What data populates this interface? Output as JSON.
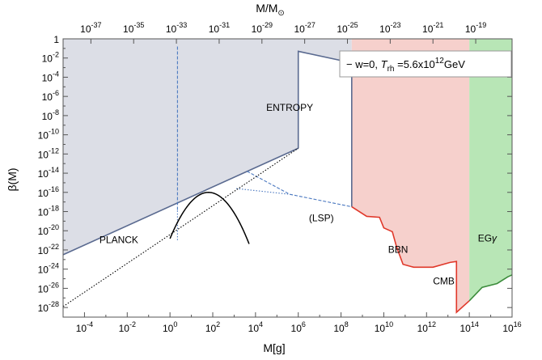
{
  "chart_data": {
    "type": "line",
    "xlabel": "M[g]",
    "xlabel_top": "M/M",
    "xlabel_top_sub": "⊙",
    "ylabel": "β(M)",
    "x_log_range": [
      -5,
      16
    ],
    "y_log_range": [
      -29,
      0
    ],
    "x_ticks": [
      {
        "exp": -4,
        "label": "10",
        "sup": "-4"
      },
      {
        "exp": -2,
        "label": "10",
        "sup": "-2"
      },
      {
        "exp": 0,
        "label": "10",
        "sup": "0"
      },
      {
        "exp": 2,
        "label": "10",
        "sup": "2"
      },
      {
        "exp": 4,
        "label": "10",
        "sup": "4"
      },
      {
        "exp": 6,
        "label": "10",
        "sup": "6"
      },
      {
        "exp": 8,
        "label": "10",
        "sup": "8"
      },
      {
        "exp": 10,
        "label": "10",
        "sup": "10"
      },
      {
        "exp": 12,
        "label": "10",
        "sup": "12"
      },
      {
        "exp": 14,
        "label": "10",
        "sup": "14"
      },
      {
        "exp": 16,
        "label": "10",
        "sup": "16"
      }
    ],
    "x_top_ticks": [
      {
        "exp_g": -3.7,
        "label": "10",
        "sup": "-37"
      },
      {
        "exp_g": -1.7,
        "label": "10",
        "sup": "-35"
      },
      {
        "exp_g": 0.3,
        "label": "10",
        "sup": "-33"
      },
      {
        "exp_g": 2.3,
        "label": "10",
        "sup": "-31"
      },
      {
        "exp_g": 4.3,
        "label": "10",
        "sup": "-29"
      },
      {
        "exp_g": 6.3,
        "label": "10",
        "sup": "-27"
      },
      {
        "exp_g": 8.3,
        "label": "10",
        "sup": "-25"
      },
      {
        "exp_g": 10.3,
        "label": "10",
        "sup": "-23"
      },
      {
        "exp_g": 12.3,
        "label": "10",
        "sup": "-21"
      },
      {
        "exp_g": 14.3,
        "label": "10",
        "sup": "-19"
      }
    ],
    "y_ticks": [
      {
        "exp": 0,
        "label": "1",
        "sup": ""
      },
      {
        "exp": -2,
        "label": "10",
        "sup": "-2"
      },
      {
        "exp": -4,
        "label": "10",
        "sup": "-4"
      },
      {
        "exp": -6,
        "label": "10",
        "sup": "-6"
      },
      {
        "exp": -8,
        "label": "10",
        "sup": "-8"
      },
      {
        "exp": -10,
        "label": "10",
        "sup": "-10"
      },
      {
        "exp": -12,
        "label": "10",
        "sup": "-12"
      },
      {
        "exp": -14,
        "label": "10",
        "sup": "-14"
      },
      {
        "exp": -16,
        "label": "10",
        "sup": "-16"
      },
      {
        "exp": -18,
        "label": "10",
        "sup": "-18"
      },
      {
        "exp": -20,
        "label": "10",
        "sup": "-20"
      },
      {
        "exp": -22,
        "label": "10",
        "sup": "-22"
      },
      {
        "exp": -24,
        "label": "10",
        "sup": "-24"
      },
      {
        "exp": -26,
        "label": "10",
        "sup": "-26"
      },
      {
        "exp": -28,
        "label": "10",
        "sup": "-28"
      }
    ],
    "regions": [
      {
        "name": "gray-region",
        "color": "#dcdee6",
        "points": [
          [
            -5,
            -22.5
          ],
          [
            6,
            -11.4
          ],
          [
            6,
            -1.3
          ],
          [
            8.5,
            -2.5
          ],
          [
            8.5,
            -17.5
          ],
          [
            8.5,
            0
          ],
          [
            -5,
            0
          ]
        ]
      },
      {
        "name": "bbn-cmb-region",
        "color": "#f6d0cc",
        "points": [
          [
            8.5,
            0
          ],
          [
            8.5,
            -17.5
          ],
          [
            9.2,
            -18.5
          ],
          [
            9.8,
            -18.6
          ],
          [
            10.0,
            -19.7
          ],
          [
            10.4,
            -20.1
          ],
          [
            10.6,
            -21.7
          ],
          [
            10.9,
            -23.5
          ],
          [
            11.4,
            -23.8
          ],
          [
            12.3,
            -23.8
          ],
          [
            13.1,
            -23.3
          ],
          [
            13.4,
            -23.2
          ],
          [
            13.4,
            -28.5
          ],
          [
            14.0,
            -27.3
          ],
          [
            14.0,
            0
          ]
        ]
      },
      {
        "name": "eg-gamma-region",
        "color": "#b8e6b6",
        "points": [
          [
            14.0,
            0
          ],
          [
            14.0,
            -27.3
          ],
          [
            14.3,
            -26.6
          ],
          [
            14.6,
            -25.9
          ],
          [
            15.3,
            -25.5
          ],
          [
            15.8,
            -24.8
          ],
          [
            16,
            -24.6
          ],
          [
            16,
            0
          ]
        ]
      }
    ],
    "lines": [
      {
        "name": "planck-boundary",
        "style": "solid",
        "color": "#5a6a90",
        "points": [
          [
            -5,
            -22.5
          ],
          [
            6,
            -11.4
          ]
        ]
      },
      {
        "name": "entropy-boundary",
        "style": "solid",
        "color": "#5a6a90",
        "points": [
          [
            6,
            -11.4
          ],
          [
            6,
            -1.3
          ],
          [
            8.5,
            -2.5
          ],
          [
            8.5,
            -17.5
          ]
        ]
      },
      {
        "name": "lsp-upper",
        "style": "dashed",
        "color": "#4a78c0",
        "points": [
          [
            3.6,
            -13.8
          ],
          [
            5.6,
            -16.2
          ],
          [
            8.5,
            -17.5
          ]
        ]
      },
      {
        "name": "lsp-lower",
        "style": "dotted",
        "color": "#4a78c0",
        "points": [
          [
            3.1,
            -15.6
          ],
          [
            5.6,
            -16.2
          ]
        ]
      },
      {
        "name": "relics-vertical-dashed",
        "style": "dashed",
        "color": "#4a78c0",
        "points": [
          [
            0.35,
            -0.8
          ],
          [
            0.35,
            -17.9
          ]
        ]
      },
      {
        "name": "relics-vertical-dotted",
        "style": "dotted",
        "color": "#4a78c0",
        "points": [
          [
            0.35,
            -17.9
          ],
          [
            0.35,
            -21.0
          ]
        ]
      },
      {
        "name": "bbn-cmb-boundary",
        "style": "solid",
        "color": "#e0382a",
        "points": [
          [
            8.5,
            -17.5
          ],
          [
            9.2,
            -18.5
          ],
          [
            9.8,
            -18.6
          ],
          [
            10.0,
            -19.7
          ],
          [
            10.4,
            -20.1
          ],
          [
            10.6,
            -21.7
          ],
          [
            10.9,
            -23.5
          ],
          [
            11.4,
            -23.8
          ],
          [
            12.3,
            -23.8
          ],
          [
            13.1,
            -23.3
          ],
          [
            13.4,
            -23.2
          ],
          [
            13.4,
            -28.5
          ],
          [
            14.0,
            -27.3
          ]
        ]
      },
      {
        "name": "eg-gamma-boundary",
        "style": "solid",
        "color": "#3c8c3c",
        "points": [
          [
            14.0,
            -27.3
          ],
          [
            14.3,
            -26.6
          ],
          [
            14.6,
            -25.9
          ],
          [
            15.3,
            -25.5
          ],
          [
            15.8,
            -24.8
          ],
          [
            16,
            -24.6
          ]
        ]
      },
      {
        "name": "planck-extension",
        "style": "dotted",
        "color": "#000000",
        "points": [
          [
            -5,
            -27.9
          ],
          [
            6,
            -11.4
          ]
        ]
      }
    ],
    "mass_function": {
      "name": "mass-function",
      "color": "#000000",
      "peak_x": 1.8,
      "peak_y": -16.0,
      "width": 1.64,
      "x_range": [
        0,
        3.7
      ]
    },
    "annotations": [
      {
        "name": "label-entropy",
        "text": "ENTROPY",
        "x": 4.5,
        "y": -7.5
      },
      {
        "name": "label-planck",
        "text": "PLANCK",
        "x": -3.3,
        "y": -21.3
      },
      {
        "name": "label-lsp",
        "text": "(LSP)",
        "x": 6.5,
        "y": -19.0
      },
      {
        "name": "label-bbn",
        "text": "BBN",
        "x": 10.2,
        "y": -22.3
      },
      {
        "name": "label-cmb",
        "text": "CMB",
        "x": 12.3,
        "y": -25.6
      },
      {
        "name": "label-eg",
        "text": "EG",
        "x": 14.4,
        "y": -21.1
      }
    ],
    "legend": {
      "placement": "top-right",
      "prefix": "− w=0, ",
      "t_symbol": "T",
      "t_sub": "rh",
      "middle": " =5.6x10",
      "exp": "12",
      "unit": "GeV"
    },
    "colors": {
      "gray_fill": "#dcdee6",
      "pink_fill": "#f6d0cc",
      "green_fill": "#b8e6b6",
      "gray_line": "#5a6a90",
      "red_line": "#e0382a",
      "green_line": "#3c8c3c",
      "blue_line": "#4a78c0"
    },
    "grid": false
  }
}
